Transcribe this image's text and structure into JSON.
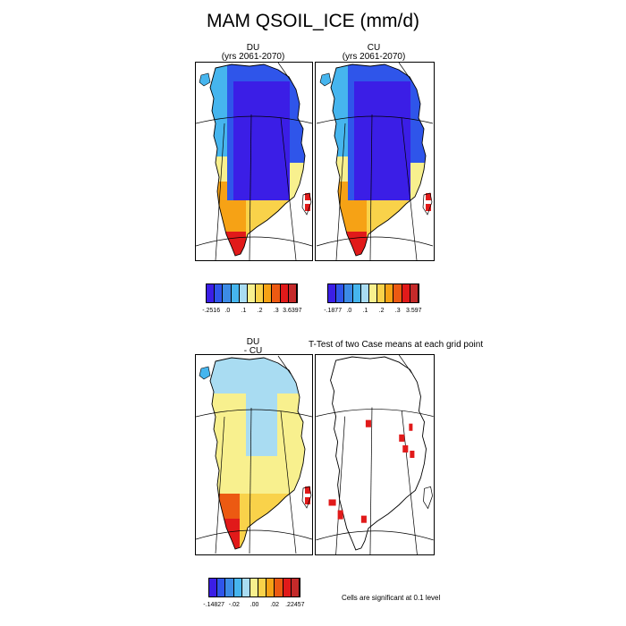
{
  "title": "MAM QSOIL_ICE (mm/d)",
  "panels": {
    "du": {
      "title_line1": "DU",
      "title_line2": "(yrs 2061-2070)"
    },
    "cu": {
      "title_line1": "CU",
      "title_line2": "(yrs 2061-2070)"
    },
    "diff": {
      "title_line1": "DU",
      "title_line2": "- CU"
    },
    "ttest": {
      "title": "T-Test of two Case means at each grid point"
    }
  },
  "colorbars": {
    "du": {
      "labels": [
        "-.2516",
        ".0",
        ".1",
        ".2",
        ".3",
        "3.6397"
      ],
      "colors": [
        "#3b1ee6",
        "#2f55ea",
        "#3c8be6",
        "#46b5ee",
        "#a9dcf2",
        "#f8f08e",
        "#f9d24a",
        "#f6a215",
        "#ec5a12",
        "#e11a1a",
        "#c42a2a"
      ]
    },
    "cu": {
      "labels": [
        "-.1877",
        ".0",
        ".1",
        ".2",
        ".3",
        "3.597"
      ],
      "colors": [
        "#3b1ee6",
        "#2f55ea",
        "#3c8be6",
        "#46b5ee",
        "#a9dcf2",
        "#f8f08e",
        "#f9d24a",
        "#f6a215",
        "#ec5a12",
        "#e11a1a",
        "#c42a2a"
      ]
    },
    "diff": {
      "labels": [
        "-.14827",
        "-.02",
        ".00",
        ".02",
        ".22457"
      ],
      "colors": [
        "#3b1ee6",
        "#2f55ea",
        "#3c8be6",
        "#46b5ee",
        "#a9dcf2",
        "#f8f08e",
        "#f9d24a",
        "#f6a215",
        "#ec5a12",
        "#e11a1a",
        "#c42a2a"
      ]
    }
  },
  "significance_note": "Cells are significant at 0.1 level"
}
